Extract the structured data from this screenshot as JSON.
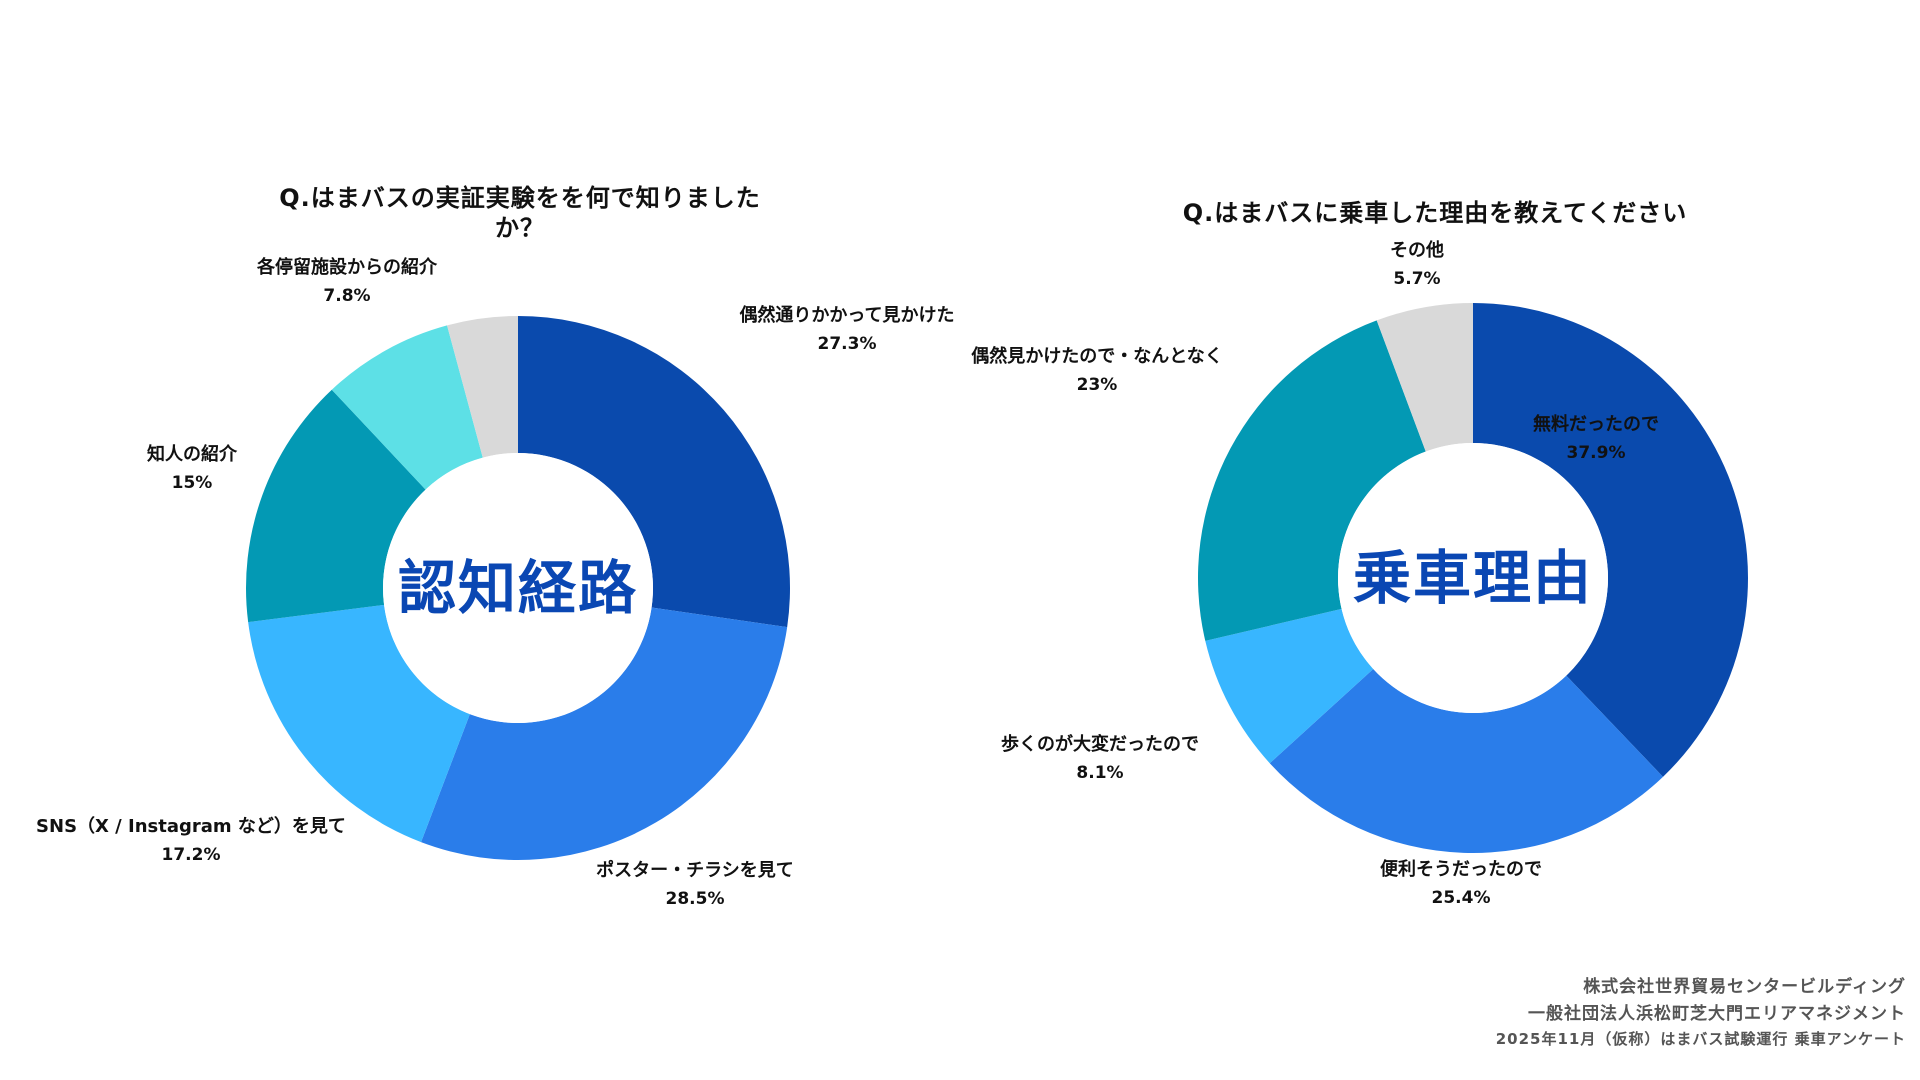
{
  "chart_data": [
    {
      "type": "pie",
      "title": "Q.はまバスの実証実験をを何で知りましたか？",
      "center_label": "認知経路",
      "categories": [
        "偶然通りかかって見かけた",
        "ポスター・チラシを見て",
        "SNS（X / Instagram など）を見て",
        "知人の紹介",
        "各停留施設からの紹介",
        ""
      ],
      "values": [
        27.3,
        28.5,
        17.2,
        15,
        7.8,
        4.2
      ],
      "value_labels": [
        "27.3%",
        "28.5%",
        "17.2%",
        "15%",
        "7.8%",
        ""
      ],
      "colors": [
        "#0a4aad",
        "#2a7dea",
        "#38b6ff",
        "#0399b4",
        "#5de0e6",
        "#d9d9d9"
      ]
    },
    {
      "type": "pie",
      "title": "Q.はまバスに乗車した理由を教えてください",
      "center_label": "乗車理由",
      "categories": [
        "無料だったので",
        "便利そうだったので",
        "歩くのが大変だったので",
        "偶然見かけたので・なんとなく",
        "その他"
      ],
      "values": [
        37.9,
        25.4,
        8.1,
        23,
        5.7
      ],
      "value_labels": [
        "37.9%",
        "25.4%",
        "8.1%",
        "23%",
        "5.7%"
      ],
      "colors": [
        "#0a4aad",
        "#2a7dea",
        "#38b6ff",
        "#0399b4",
        "#d9d9d9"
      ]
    }
  ],
  "footer": {
    "line1": "株式会社世界貿易センタービルディング",
    "line2": "一般社団法人浜松町芝大門エリアマネジメント",
    "line3": "2025年11月（仮称）はまバス試験運行 乗車アンケート"
  }
}
